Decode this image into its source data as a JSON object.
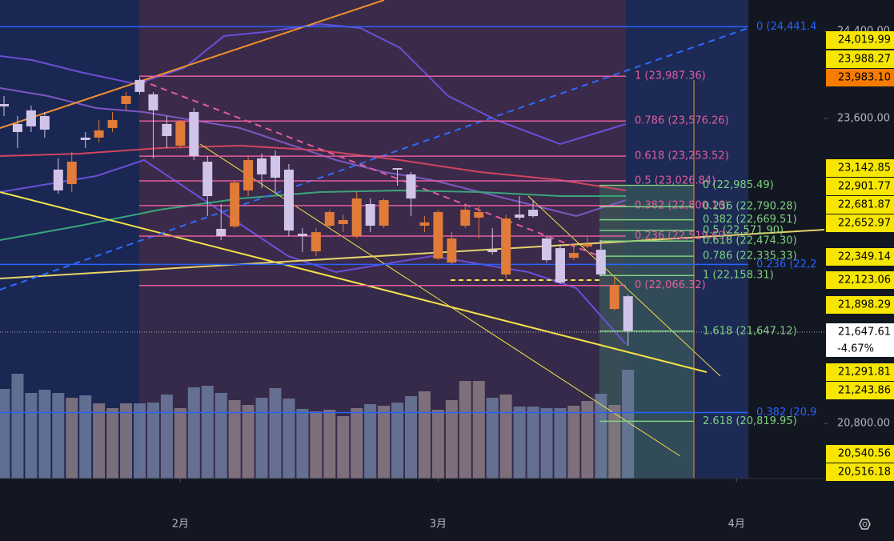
{
  "chart_data": {
    "type": "candlestick",
    "ylim": [
      20294,
      24687
    ],
    "yticks": [
      {
        "value": 20800,
        "label": "20,800.00"
      },
      {
        "value": 23600,
        "label": "23,600.00"
      },
      {
        "value": 24400,
        "label": "24,400.00"
      }
    ],
    "xticks": [
      {
        "value": 13,
        "label": "2月"
      },
      {
        "value": 32,
        "label": "3月"
      },
      {
        "value": 54,
        "label": "4月"
      }
    ],
    "up_color": "#e07b39",
    "down_color": "#d1c4e9",
    "vol_up_color": "#8a7b84",
    "vol_down_color": "#6c7b9e",
    "open": [
      23732,
      23549,
      23674,
      23622,
      23130,
      22997,
      23424,
      23424,
      23512,
      23732,
      23953,
      23821,
      23549,
      23350,
      23659,
      23203,
      22586,
      22608,
      22939,
      23233,
      23255,
      23130,
      22542,
      22380,
      22615,
      22630,
      22520,
      22814,
      22615,
      23144,
      23086,
      22615,
      22314,
      22277,
      22615,
      22689,
      22395,
      22167,
      22718,
      22762,
      22498,
      22409,
      22321,
      22424,
      22395,
      21851,
      21968
    ],
    "close": [
      23710,
      23475,
      23527,
      23497,
      22939,
      23203,
      23402,
      23490,
      23585,
      23806,
      23843,
      23674,
      23438,
      23571,
      23255,
      22887,
      22520,
      23012,
      23218,
      23086,
      23056,
      22571,
      22520,
      22556,
      22740,
      22667,
      22865,
      22615,
      22850,
      23130,
      22865,
      22645,
      22740,
      22498,
      22762,
      22740,
      22373,
      22681,
      22689,
      22703,
      22299,
      22093,
      22365,
      22446,
      22167,
      22071,
      21647.61
    ],
    "high": [
      23806,
      23622,
      23718,
      23659,
      23233,
      23291,
      23475,
      23585,
      23659,
      23843,
      23975,
      23843,
      23622,
      23585,
      23696,
      23255,
      22814,
      23034,
      23255,
      23277,
      23306,
      23181,
      22593,
      22593,
      22762,
      22718,
      22924,
      22865,
      22865,
      23144,
      23108,
      22703,
      22762,
      22556,
      22814,
      22792,
      22593,
      22718,
      22887,
      22850,
      22520,
      22446,
      22446,
      22520,
      22483,
      22152,
      21983
    ],
    "low": [
      23622,
      23328,
      23475,
      23424,
      22909,
      22924,
      23328,
      23380,
      23475,
      23674,
      23821,
      23233,
      23328,
      23328,
      23218,
      22703,
      22483,
      22593,
      22887,
      22961,
      22924,
      22520,
      22373,
      22336,
      22593,
      22556,
      22498,
      22556,
      22593,
      22983,
      22703,
      22556,
      22299,
      22262,
      22593,
      22498,
      22351,
      22130,
      22667,
      22689,
      22277,
      22079,
      22299,
      22409,
      22152,
      21836,
      21513
    ],
    "volume": [
      112,
      131,
      107,
      111,
      107,
      101,
      104,
      94,
      88,
      94,
      94,
      95,
      105,
      88,
      114,
      116,
      107,
      98,
      92,
      101,
      113,
      100,
      87,
      84,
      86,
      78,
      88,
      93,
      91,
      95,
      103,
      109,
      86,
      98,
      122,
      122,
      101,
      105,
      90,
      90,
      88,
      88,
      91,
      97,
      106,
      92,
      136
    ],
    "fib_pink": {
      "color": "#e35d9f",
      "levels": [
        {
          "value": 23987.36,
          "label": "1 (23,987.36)"
        },
        {
          "value": 23576.26,
          "label": "0.786 (23,576.26)"
        },
        {
          "value": 23253.52,
          "label": "0.618 (23,253.52)"
        },
        {
          "value": 23026.84,
          "label": "0.5 (23,026.84)"
        },
        {
          "value": 22800.16,
          "label": "0.382 (22,800.16)"
        },
        {
          "value": 22519.69,
          "label": "0.236 (22,519.69)"
        },
        {
          "value": 22066.32,
          "label": "0 (22,066.32)"
        }
      ]
    },
    "fib_green": {
      "color": "#7fd27f",
      "levels": [
        {
          "value": 22985.49,
          "label": "0 (22,985.49)"
        },
        {
          "value": 22790.28,
          "label": "0.236 (22,790.28)"
        },
        {
          "value": 22669.51,
          "label": "0.382 (22,669.51)"
        },
        {
          "value": 22571.9,
          "label": "0.5 (22,571.90)"
        },
        {
          "value": 22474.3,
          "label": "0.618 (22,474.30)"
        },
        {
          "value": 22335.33,
          "label": "0.786 (22,335.33)"
        },
        {
          "value": 22158.31,
          "label": "1 (22,158.31)"
        },
        {
          "value": 21647.12,
          "label": "1.618 (21,647.12)"
        },
        {
          "value": 20819.95,
          "label": "2.618 (20,819.95)"
        }
      ]
    },
    "fib_blue": {
      "color": "#2962ff",
      "levels": [
        {
          "value": 24441.44,
          "label": "0 (24,441.4"
        },
        {
          "value": 22260,
          "label": "0.236 (22,2"
        },
        {
          "value": 20900,
          "label": "0.382 (20,9"
        }
      ]
    },
    "price_labels": [
      {
        "value": 24019.99,
        "label": "24,019.99"
      },
      {
        "value": 23988.27,
        "label": "23,988.27"
      },
      {
        "value": 23983.1,
        "label": "23,983.10"
      },
      {
        "value": 23142.85,
        "label": "23,142.85"
      },
      {
        "value": 22901.77,
        "label": "22,901.77"
      },
      {
        "value": 22681.87,
        "label": "22,681.87"
      },
      {
        "value": 22652.97,
        "label": "22,652.97"
      },
      {
        "value": 22349.14,
        "label": "22,349.14"
      },
      {
        "value": 22123.06,
        "label": "22,123.06"
      },
      {
        "value": 21898.29,
        "label": "21,898.29"
      },
      {
        "value": 21647.61,
        "label": "21,647.61"
      },
      {
        "value": 21291.81,
        "label": "21,291.81"
      },
      {
        "value": 21243.86,
        "label": "21,243.86"
      },
      {
        "value": 20540.56,
        "label": "20,540.56"
      },
      {
        "value": 20516.18,
        "label": "20,516.18"
      }
    ],
    "last_change": "-4.67%"
  }
}
